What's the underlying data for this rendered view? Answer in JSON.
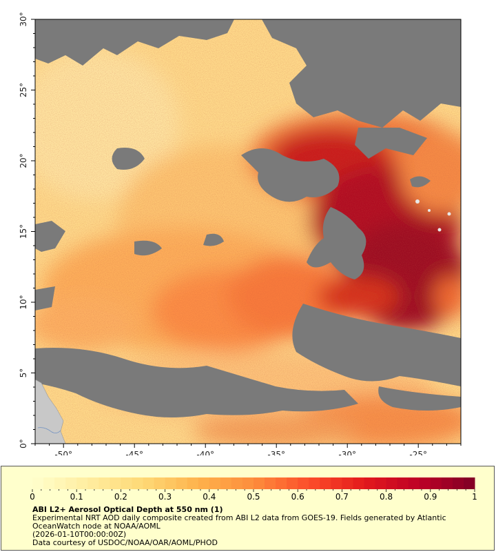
{
  "map": {
    "lon_ticks": [
      "-50°",
      "-45°",
      "-40°",
      "-35°",
      "-30°",
      "-25°"
    ],
    "lat_ticks": [
      "0°",
      "5°",
      "10°",
      "15°",
      "20°",
      "25°",
      "30°"
    ],
    "lon_values": [
      -50,
      -45,
      -40,
      -35,
      -30,
      -25
    ],
    "lat_values": [
      0,
      5,
      10,
      15,
      20,
      25,
      30
    ],
    "lon_range": [
      -52,
      -22
    ],
    "lat_range": [
      0,
      30
    ],
    "colors": {
      "no_data": "#7a7a7a",
      "land": "#c8c8c8",
      "frame": "#000000"
    }
  },
  "legend": {
    "ticks": [
      "0",
      "0.1",
      "0.2",
      "0.3",
      "0.4",
      "0.5",
      "0.6",
      "0.7",
      "0.8",
      "0.9",
      "1"
    ],
    "tick_values": [
      0,
      0.1,
      0.2,
      0.3,
      0.4,
      0.5,
      0.6,
      0.7,
      0.8,
      0.9,
      1
    ],
    "range": [
      0,
      1
    ],
    "colors": [
      "#ffffcc",
      "#ffeda0",
      "#fed976",
      "#feb24c",
      "#fd8d3c",
      "#fc4e2a",
      "#e31a1c",
      "#bd0026",
      "#800026"
    ],
    "title": "ABI L2+ Aerosol Optical Depth at 550 nm (1)",
    "description": "Experimental NRT AOD daily composite created from ABI L2 data from GOES-19. Fields generated by Atlantic OceanWatch node at NOAA/AOML",
    "date": "(2026-01-10T00:00:00Z)",
    "credit": "Data courtesy of USDOC/NOAA/OAR/AOML/PHOD"
  }
}
